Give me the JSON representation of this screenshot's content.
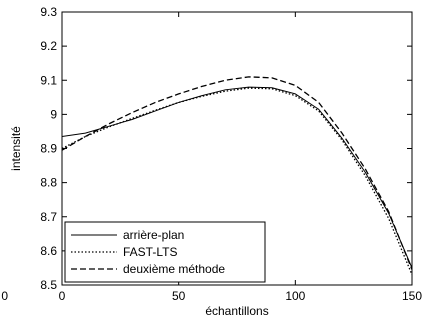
{
  "chart_data": {
    "type": "line",
    "title": "",
    "xlabel": "échantillons",
    "ylabel": "intensité",
    "xlim": [
      0,
      150
    ],
    "ylim": [
      8.5,
      9.3
    ],
    "xticks": [
      0,
      50,
      100,
      150
    ],
    "yticks": [
      8.5,
      8.6,
      8.7,
      8.8,
      8.9,
      9.0,
      9.1,
      9.2,
      9.3
    ],
    "xtick_labels": [
      "0",
      "50",
      "100",
      "150"
    ],
    "ytick_labels": [
      "8.5",
      "8.6",
      "8.7",
      "8.8",
      "8.9",
      "9",
      "9.1",
      "9.2",
      "9.3"
    ],
    "stray_label": "0",
    "grid": false,
    "legend_position": "bottom-left",
    "series": [
      {
        "name": "arrière-plan",
        "style": "solid",
        "x": [
          0,
          10,
          20,
          30,
          40,
          50,
          60,
          70,
          80,
          90,
          100,
          110,
          120,
          130,
          140,
          150
        ],
        "y": [
          8.935,
          8.945,
          8.965,
          8.985,
          9.01,
          9.035,
          9.055,
          9.072,
          9.08,
          9.078,
          9.06,
          9.015,
          8.93,
          8.83,
          8.71,
          8.55
        ]
      },
      {
        "name": "FAST-LTS",
        "style": "dotted",
        "x": [
          0,
          10,
          20,
          30,
          40,
          50,
          60,
          70,
          80,
          90,
          100,
          110,
          120,
          130,
          140,
          150
        ],
        "y": [
          8.9,
          8.935,
          8.963,
          8.988,
          9.012,
          9.035,
          9.053,
          9.068,
          9.077,
          9.075,
          9.055,
          9.01,
          8.925,
          8.82,
          8.695,
          8.53
        ]
      },
      {
        "name": "deuxième méthode",
        "style": "dashed",
        "x": [
          0,
          10,
          20,
          30,
          40,
          50,
          60,
          70,
          80,
          90,
          100,
          110,
          120,
          130,
          140,
          150
        ],
        "y": [
          8.895,
          8.935,
          8.972,
          9.005,
          9.035,
          9.06,
          9.082,
          9.1,
          9.11,
          9.107,
          9.085,
          9.035,
          8.945,
          8.84,
          8.715,
          8.545
        ]
      }
    ]
  }
}
